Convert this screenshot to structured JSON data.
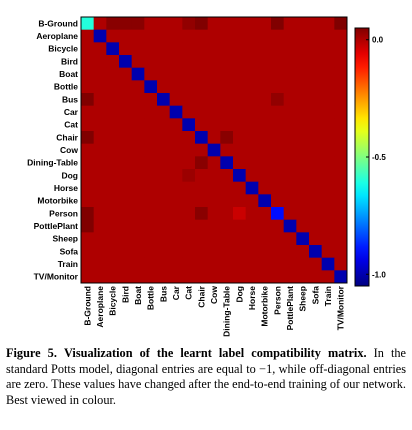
{
  "chart_data": {
    "type": "heatmap",
    "row_labels": [
      "B-Ground",
      "Aeroplane",
      "Bicycle",
      "Bird",
      "Boat",
      "Bottle",
      "Bus",
      "Car",
      "Cat",
      "Chair",
      "Cow",
      "Dining-Table",
      "Dog",
      "Horse",
      "Motorbike",
      "Person",
      "PottlePlant",
      "Sheep",
      "Sofa",
      "Train",
      "TV/Monitor"
    ],
    "col_labels": [
      "B-Ground",
      "Aeroplane",
      "Bicycle",
      "Bird",
      "Boat",
      "Bottle",
      "Bus",
      "Car",
      "Cat",
      "Chair",
      "Cow",
      "Dining-Table",
      "Dog",
      "Horse",
      "Motorbike",
      "Person",
      "PottlePlant",
      "Sheep",
      "Sofa",
      "Train",
      "TV/Monitor"
    ],
    "diagonal": [
      -0.6,
      -1.0,
      -1.0,
      -1.0,
      -1.0,
      -1.0,
      -1.0,
      -1.0,
      -1.0,
      -1.0,
      -1.0,
      -1.0,
      -1.0,
      -1.0,
      -1.0,
      -0.9,
      -1.0,
      -1.0,
      -1.0,
      -1.0,
      -1.0
    ],
    "off_diagonal_default": 0.0,
    "off_diagonal_notable": [
      {
        "row": 0,
        "col": 9,
        "value": 0.12
      },
      {
        "row": 0,
        "col": 15,
        "value": 0.07
      },
      {
        "row": 0,
        "col": 20,
        "value": 0.05
      },
      {
        "row": 0,
        "col": 2,
        "value": 0.04
      },
      {
        "row": 0,
        "col": 3,
        "value": 0.04
      },
      {
        "row": 0,
        "col": 4,
        "value": 0.04
      },
      {
        "row": 0,
        "col": 8,
        "value": 0.03
      },
      {
        "row": 6,
        "col": 0,
        "value": 0.06
      },
      {
        "row": 15,
        "col": 0,
        "value": 0.1
      },
      {
        "row": 16,
        "col": 0,
        "value": 0.06
      },
      {
        "row": 9,
        "col": 0,
        "value": 0.05
      },
      {
        "row": 9,
        "col": 11,
        "value": 0.04
      },
      {
        "row": 11,
        "col": 9,
        "value": 0.04
      },
      {
        "row": 15,
        "col": 9,
        "value": 0.04
      },
      {
        "row": 6,
        "col": 15,
        "value": 0.03
      },
      {
        "row": 15,
        "col": 12,
        "value": -0.03
      },
      {
        "row": 12,
        "col": 8,
        "value": 0.02
      }
    ],
    "colorbar": {
      "min": -1.05,
      "max": 0.05,
      "ticks": [
        0.0,
        -0.5,
        -1.0
      ],
      "tick_labels": [
        "0.0",
        "-0.5",
        "-1.0"
      ]
    },
    "colormap": "jet",
    "grid": false
  },
  "caption": {
    "label": "Figure 5.",
    "title": "Visualization of the learnt label compatibility matrix.",
    "body": " In the standard Potts model, diagonal entries are equal to −1, while off-diagonal entries are zero. These values have changed after the end-to-end training of our network. Best viewed in colour."
  }
}
